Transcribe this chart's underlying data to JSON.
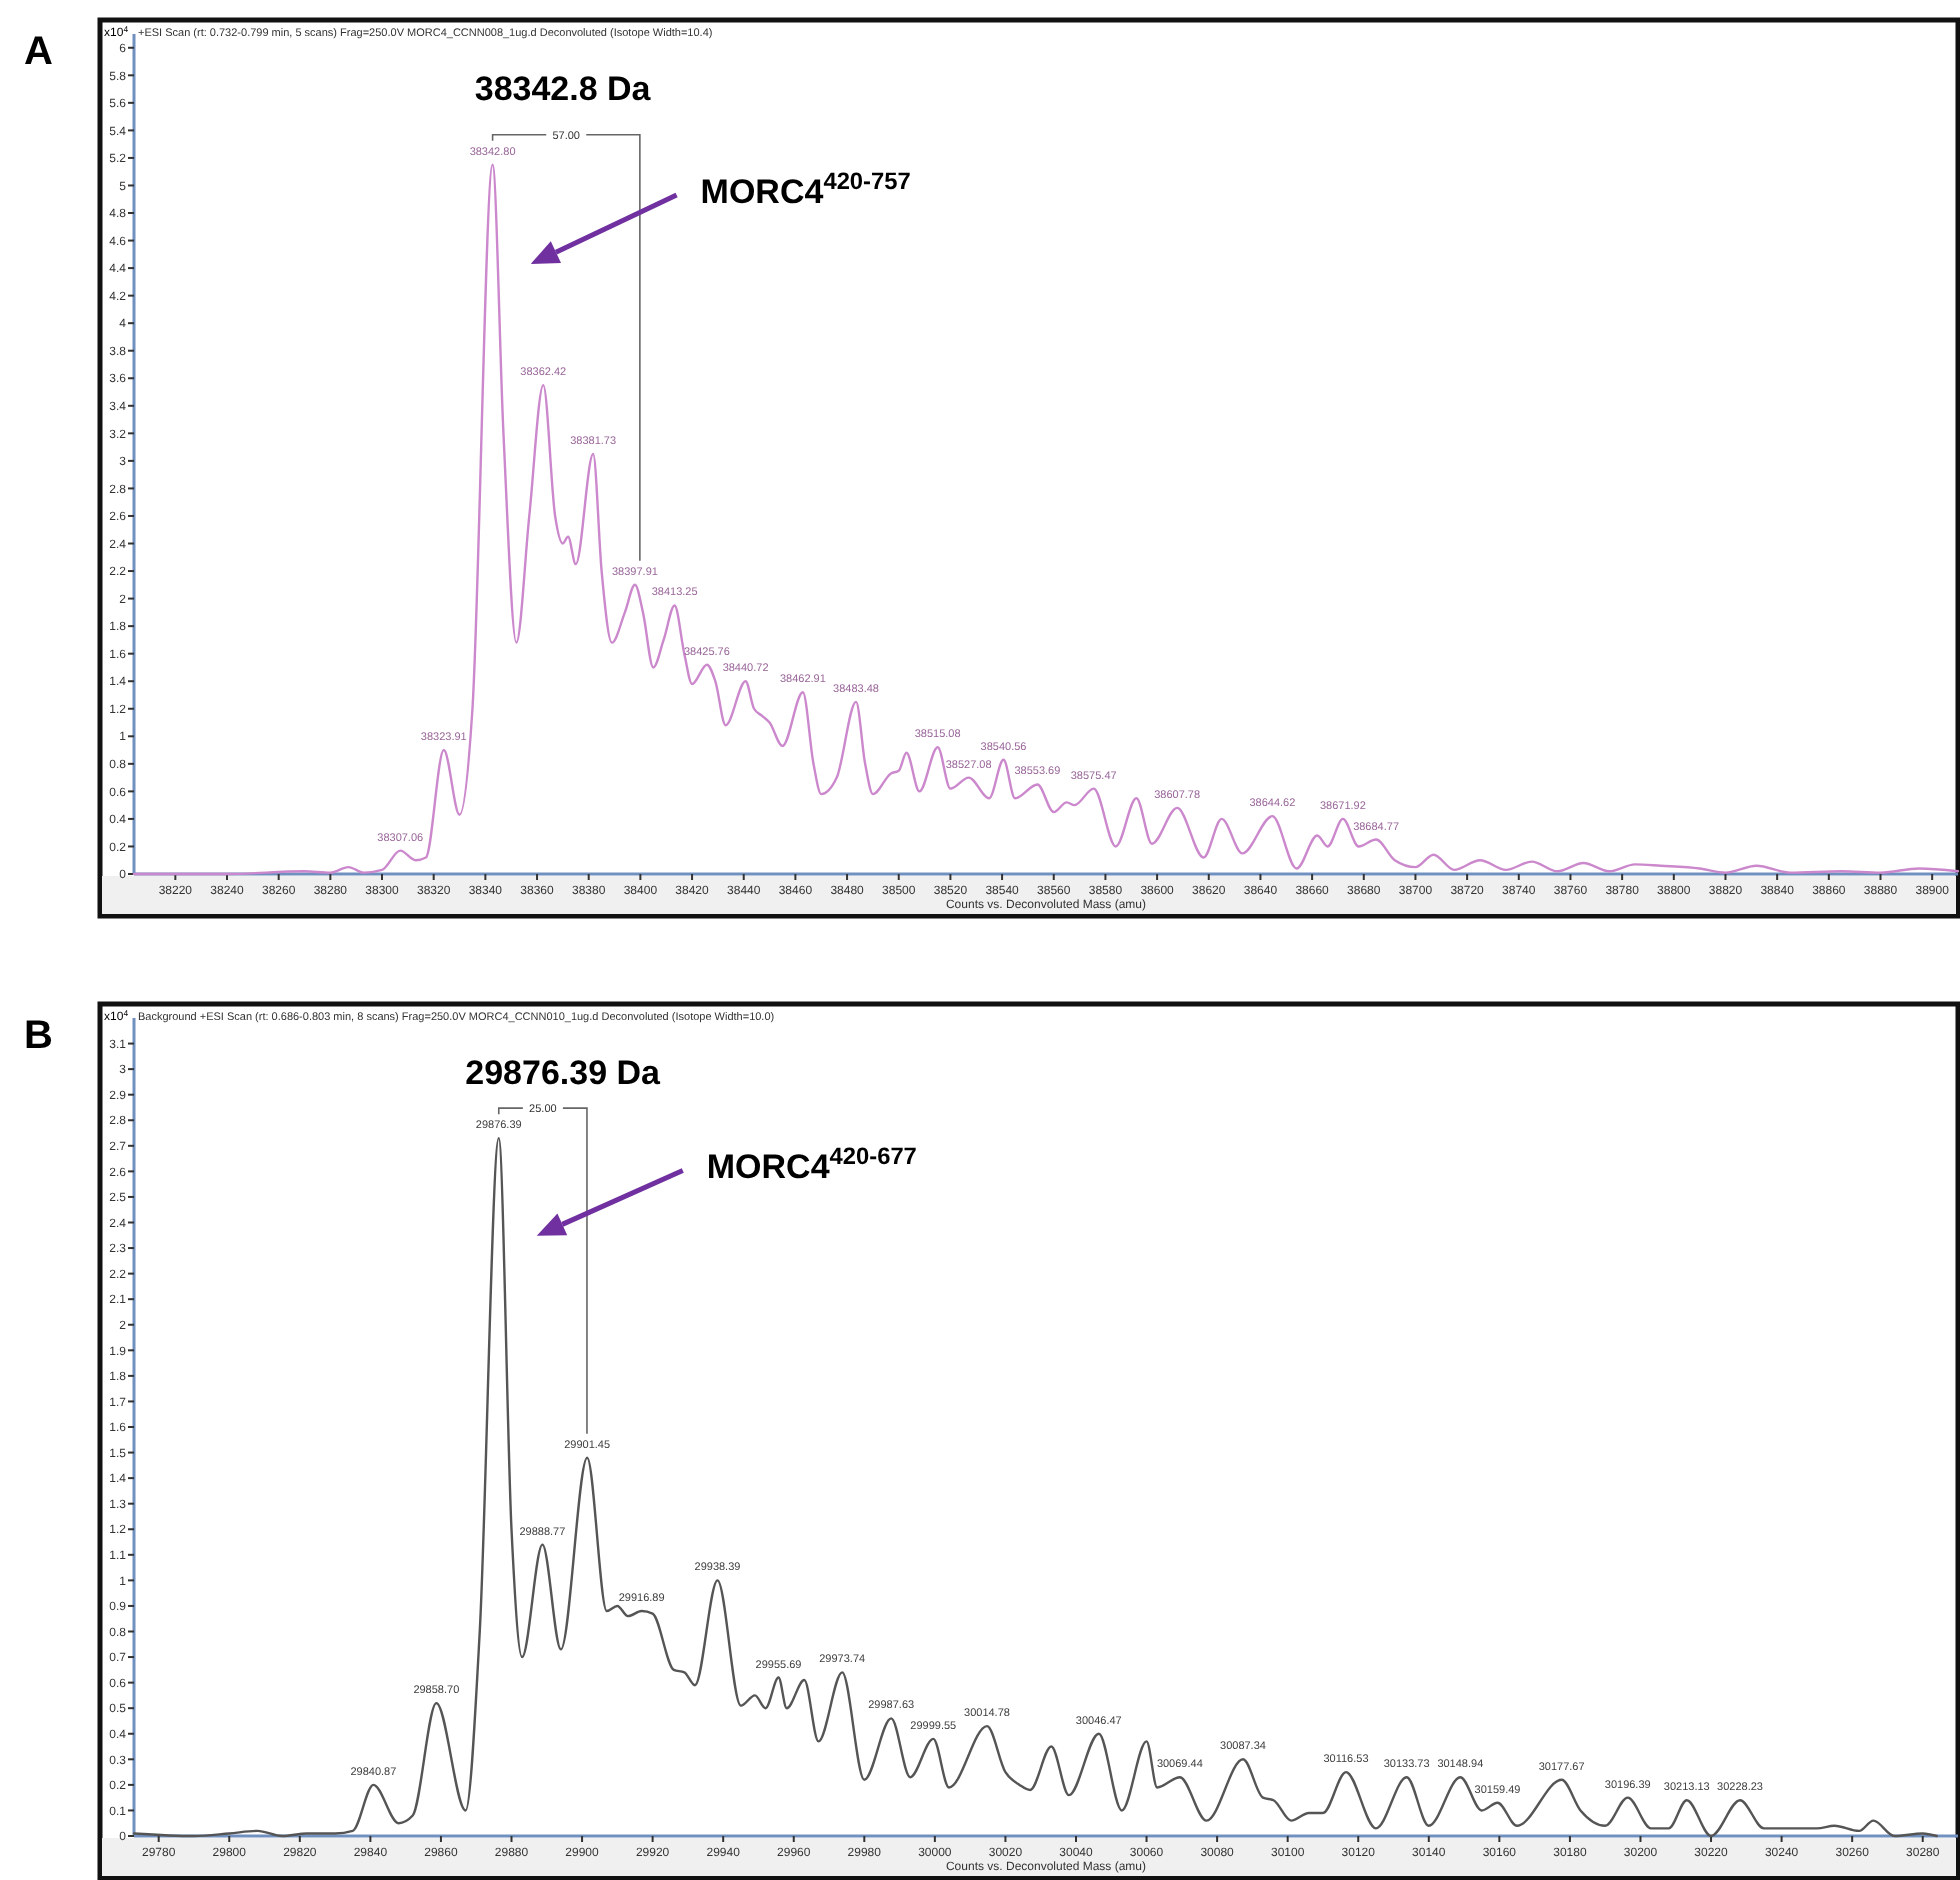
{
  "chart_data": [
    {
      "type": "line",
      "subtitle": "A",
      "title": "38342.8 Da",
      "ylabel": "x10$^{4}$",
      "xlabel": "Counts vs. Deconvoluted Mass (amu)",
      "annotations": [
        "+ESI Scan (rt: 0.732-0.799 min, 5 scans) Frag=250.0V MORC4_CCNN008_1ug.d  Deconvoluted (Isotope Width=10.4)",
        "MORC4$^{420-757}$",
        "57.00",
        {
          "text": "38342.80",
          "x": 38342.8,
          "y": 5.15
        },
        {
          "text": "38307.06",
          "x": 38307.06,
          "y": 0.17
        },
        {
          "text": "38323.91",
          "x": 38323.91,
          "y": 0.9
        },
        {
          "text": "38362.42",
          "x": 38362.42,
          "y": 3.55
        },
        {
          "text": "38381.73",
          "x": 38381.73,
          "y": 3.05
        },
        {
          "text": "38397.91",
          "x": 38397.91,
          "y": 2.1
        },
        {
          "text": "38413.25",
          "x": 38413.25,
          "y": 1.95
        },
        {
          "text": "38425.76",
          "x": 38425.76,
          "y": 1.52
        },
        {
          "text": "38440.72",
          "x": 38440.72,
          "y": 1.4
        },
        {
          "text": "38462.91",
          "x": 38462.91,
          "y": 1.32
        },
        {
          "text": "38483.48",
          "x": 38483.48,
          "y": 1.25
        },
        {
          "text": "38515.08",
          "x": 38515.08,
          "y": 0.92
        },
        {
          "text": "38527.08",
          "x": 38527.08,
          "y": 0.7
        },
        {
          "text": "38540.56",
          "x": 38540.56,
          "y": 0.83
        },
        {
          "text": "38553.69",
          "x": 38553.69,
          "y": 0.65
        },
        {
          "text": "38575.47",
          "x": 38575.47,
          "y": 0.62
        },
        {
          "text": "38607.78",
          "x": 38607.78,
          "y": 0.48
        },
        {
          "text": "38644.62",
          "x": 38644.62,
          "y": 0.42
        },
        {
          "text": "38671.92",
          "x": 38671.92,
          "y": 0.4
        },
        {
          "text": "38684.77",
          "x": 38684.77,
          "y": 0.25
        }
      ],
      "xlim": [
        38204,
        38910
      ],
      "ylim": [
        0,
        6.1
      ],
      "xticks": [
        38220,
        38240,
        38260,
        38280,
        38300,
        38320,
        38340,
        38360,
        38380,
        38400,
        38420,
        38440,
        38460,
        38480,
        38500,
        38520,
        38540,
        38560,
        38580,
        38600,
        38620,
        38640,
        38660,
        38680,
        38700,
        38720,
        38740,
        38760,
        38780,
        38800,
        38820,
        38840,
        38860,
        38880,
        38900
      ],
      "yticks": [
        0,
        0.2,
        0.4,
        0.6,
        0.8,
        1,
        1.2,
        1.4,
        1.6,
        1.8,
        2,
        2.2,
        2.4,
        2.6,
        2.8,
        3,
        3.2,
        3.4,
        3.6,
        3.8,
        4,
        4.2,
        4.4,
        4.6,
        4.8,
        5,
        5.2,
        5.4,
        5.6,
        5.8,
        6
      ],
      "grid": false,
      "marker": "none",
      "line_style": "solid",
      "series": [
        {
          "color": "#cc88cc",
          "x": [
            38204,
            38240,
            38270,
            38280,
            38287,
            38293,
            38300,
            38307.06,
            38313,
            38317,
            38323.91,
            38330,
            38335,
            38342.8,
            38347,
            38352,
            38357,
            38362.42,
            38367,
            38370,
            38372,
            38375,
            38381.73,
            38385,
            38389,
            38394,
            38397.91,
            38401,
            38405,
            38409,
            38413.25,
            38417,
            38420,
            38425.76,
            38429,
            38433,
            38440.72,
            38444,
            38447,
            38450,
            38455,
            38462.91,
            38467,
            38470,
            38476,
            38483.48,
            38487,
            38490,
            38497,
            38500,
            38503,
            38508,
            38515.08,
            38520,
            38527.08,
            38535,
            38540.56,
            38545,
            38553.69,
            38560,
            38565,
            38568,
            38575.47,
            38584,
            38592,
            38598,
            38607.78,
            38618,
            38625,
            38633,
            38644.62,
            38654,
            38662,
            38666,
            38671.92,
            38678,
            38684.77,
            38692,
            38700,
            38707,
            38715,
            38725,
            38735,
            38745,
            38755,
            38765,
            38775,
            38785,
            38795,
            38810,
            38820,
            38832,
            38845,
            38865,
            38880,
            38895,
            38910
          ],
          "values": [
            0,
            0,
            0.02,
            0.01,
            0.05,
            0.01,
            0.03,
            0.17,
            0.1,
            0.12,
            0.9,
            0.43,
            1.2,
            5.15,
            3.2,
            1.68,
            2.6,
            3.55,
            2.6,
            2.4,
            2.45,
            2.25,
            3.05,
            2.2,
            1.68,
            1.9,
            2.1,
            1.9,
            1.5,
            1.7,
            1.95,
            1.6,
            1.38,
            1.52,
            1.4,
            1.08,
            1.4,
            1.2,
            1.15,
            1.1,
            0.93,
            1.32,
            0.8,
            0.58,
            0.7,
            1.25,
            0.8,
            0.58,
            0.73,
            0.75,
            0.88,
            0.6,
            0.92,
            0.62,
            0.7,
            0.55,
            0.83,
            0.55,
            0.65,
            0.45,
            0.52,
            0.5,
            0.62,
            0.2,
            0.55,
            0.22,
            0.48,
            0.12,
            0.4,
            0.15,
            0.42,
            0.04,
            0.28,
            0.2,
            0.4,
            0.2,
            0.25,
            0.1,
            0.05,
            0.14,
            0.03,
            0.1,
            0.03,
            0.09,
            0.02,
            0.08,
            0.02,
            0.07,
            0.06,
            0.04,
            0.01,
            0.06,
            0.01,
            0.02,
            0.01,
            0.04,
            0.02
          ]
        }
      ]
    },
    {
      "type": "line",
      "subtitle": "B",
      "title": "29876.39 Da",
      "ylabel": "x10$^{4}$",
      "xlabel": "Counts vs. Deconvoluted Mass (amu)",
      "annotations": [
        "Background  +ESI Scan (rt: 0.686-0.803 min, 8 scans) Frag=250.0V MORC4_CCNN010_1ug.d  Deconvoluted (Isotope Width=10.0)",
        "MORC4$^{420-677}$",
        "25.00",
        {
          "text": "29876.39",
          "x": 29876.39,
          "y": 2.73
        },
        {
          "text": "29840.87",
          "x": 29840.87,
          "y": 0.2
        },
        {
          "text": "29858.70",
          "x": 29858.7,
          "y": 0.52
        },
        {
          "text": "29888.77",
          "x": 29888.77,
          "y": 1.14
        },
        {
          "text": "29901.45",
          "x": 29901.45,
          "y": 1.48
        },
        {
          "text": "29916.89",
          "x": 29916.89,
          "y": 0.88
        },
        {
          "text": "29938.39",
          "x": 29938.39,
          "y": 1.0
        },
        {
          "text": "29955.69",
          "x": 29955.69,
          "y": 0.62
        },
        {
          "text": "29973.74",
          "x": 29973.74,
          "y": 0.64
        },
        {
          "text": "29987.63",
          "x": 29987.63,
          "y": 0.46
        },
        {
          "text": "29999.55",
          "x": 29999.55,
          "y": 0.38
        },
        {
          "text": "30014.78",
          "x": 30014.78,
          "y": 0.43
        },
        {
          "text": "30046.47",
          "x": 30046.47,
          "y": 0.4
        },
        {
          "text": "30069.44",
          "x": 30069.44,
          "y": 0.23
        },
        {
          "text": "30087.34",
          "x": 30087.34,
          "y": 0.3
        },
        {
          "text": "30116.53",
          "x": 30116.53,
          "y": 0.25
        },
        {
          "text": "30133.73",
          "x": 30133.73,
          "y": 0.23
        },
        {
          "text": "30148.94",
          "x": 30148.94,
          "y": 0.23
        },
        {
          "text": "30159.49",
          "x": 30159.49,
          "y": 0.13
        },
        {
          "text": "30177.67",
          "x": 30177.67,
          "y": 0.22
        },
        {
          "text": "30196.39",
          "x": 30196.39,
          "y": 0.15
        },
        {
          "text": "30213.13",
          "x": 30213.13,
          "y": 0.14
        },
        {
          "text": "30228.23",
          "x": 30228.23,
          "y": 0.14
        }
      ],
      "xlim": [
        29773,
        30290
      ],
      "ylim": [
        0,
        3.2
      ],
      "xticks": [
        29780,
        29800,
        29820,
        29840,
        29860,
        29880,
        29900,
        29920,
        29940,
        29960,
        29980,
        30000,
        30020,
        30040,
        30060,
        30080,
        30100,
        30120,
        30140,
        30160,
        30180,
        30200,
        30220,
        30240,
        30260,
        30280
      ],
      "yticks": [
        0,
        0.1,
        0.2,
        0.3,
        0.4,
        0.5,
        0.6,
        0.7,
        0.8,
        0.9,
        1,
        1.1,
        1.2,
        1.3,
        1.4,
        1.5,
        1.6,
        1.7,
        1.8,
        1.9,
        2,
        2.1,
        2.2,
        2.3,
        2.4,
        2.5,
        2.6,
        2.7,
        2.8,
        2.9,
        3,
        3.1
      ],
      "grid": false,
      "marker": "none",
      "line_style": "solid",
      "series": [
        {
          "color": "#555555",
          "x": [
            29773,
            29790,
            29800,
            29808,
            29815,
            29822,
            29830,
            29835,
            29840.87,
            29848,
            29852,
            29858.7,
            29867,
            29871,
            29876.39,
            29880,
            29883,
            29888.77,
            29894,
            29901.45,
            29907,
            29910,
            29913,
            29916.89,
            29920,
            29926,
            29929,
            29932,
            29938.39,
            29945,
            29949,
            29952,
            29955.69,
            29958,
            29963,
            29967,
            29973.74,
            29980,
            29987.63,
            29993,
            29999.55,
            30004,
            30014.78,
            30020,
            30024,
            30027,
            30033,
            30038,
            30046.47,
            30053,
            30060,
            30063,
            30069.44,
            30077,
            30087.34,
            30093,
            30096,
            30101,
            30106,
            30110,
            30116.53,
            30125,
            30133.73,
            30140,
            30148.94,
            30155,
            30159.49,
            30165,
            30177.67,
            30183,
            30190,
            30196.39,
            30203,
            30208,
            30213.13,
            30220,
            30228.23,
            30235,
            30250,
            30255,
            30262,
            30266,
            30272,
            30280,
            30284
          ],
          "values": [
            0.01,
            0.0,
            0.01,
            0.02,
            0.0,
            0.01,
            0.01,
            0.02,
            0.2,
            0.05,
            0.08,
            0.52,
            0.1,
            0.8,
            2.73,
            1.2,
            0.7,
            1.14,
            0.73,
            1.48,
            0.88,
            0.9,
            0.86,
            0.88,
            0.87,
            0.65,
            0.64,
            0.59,
            1.0,
            0.51,
            0.55,
            0.5,
            0.62,
            0.5,
            0.61,
            0.37,
            0.64,
            0.22,
            0.46,
            0.23,
            0.38,
            0.19,
            0.43,
            0.25,
            0.2,
            0.18,
            0.35,
            0.16,
            0.4,
            0.1,
            0.37,
            0.19,
            0.23,
            0.06,
            0.3,
            0.15,
            0.14,
            0.06,
            0.09,
            0.09,
            0.25,
            0.03,
            0.23,
            0.04,
            0.23,
            0.1,
            0.13,
            0.04,
            0.22,
            0.1,
            0.04,
            0.15,
            0.03,
            0.03,
            0.14,
            0.0,
            0.14,
            0.03,
            0.03,
            0.04,
            0.02,
            0.06,
            0.0,
            0.01,
            0.0
          ]
        }
      ]
    }
  ]
}
